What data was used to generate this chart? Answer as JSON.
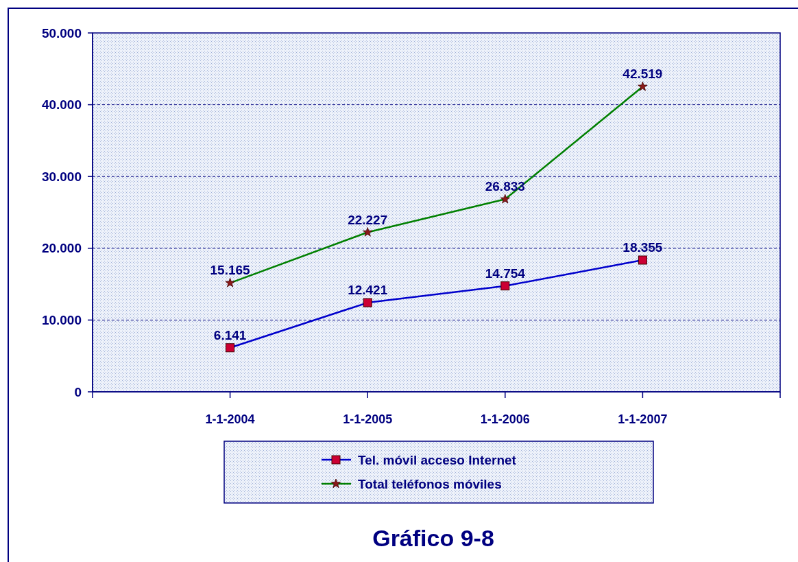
{
  "chart_data": {
    "type": "line",
    "title": "Gráfico 9-8",
    "categories": [
      null,
      "1-1-2004",
      "1-1-2005",
      "1-1-2006",
      "1-1-2007",
      null
    ],
    "series": [
      {
        "name": "Tel. móvil acceso Internet",
        "color": "#0000cc",
        "marker": "square",
        "values": [
          null,
          6141,
          12421,
          14754,
          18355,
          null
        ],
        "value_labels": [
          null,
          "6.141",
          "12.421",
          "14.754",
          "18.355",
          null
        ]
      },
      {
        "name": "Total teléfonos móviles",
        "color": "#008000",
        "marker": "star",
        "values": [
          null,
          15165,
          22227,
          26833,
          42519,
          null
        ],
        "value_labels": [
          null,
          "15.165",
          "22.227",
          "26.833",
          "42.519",
          null
        ]
      }
    ],
    "ylim": [
      0,
      50000
    ],
    "yticks": [
      {
        "value": 0,
        "label": "0"
      },
      {
        "value": 10000,
        "label": "10.000"
      },
      {
        "value": 20000,
        "label": "20.000"
      },
      {
        "value": 30000,
        "label": "30.000"
      },
      {
        "value": 40000,
        "label": "40.000"
      },
      {
        "value": 50000,
        "label": "50.000"
      }
    ],
    "grid": "y",
    "legend": "bottom",
    "line_style": "solid"
  }
}
